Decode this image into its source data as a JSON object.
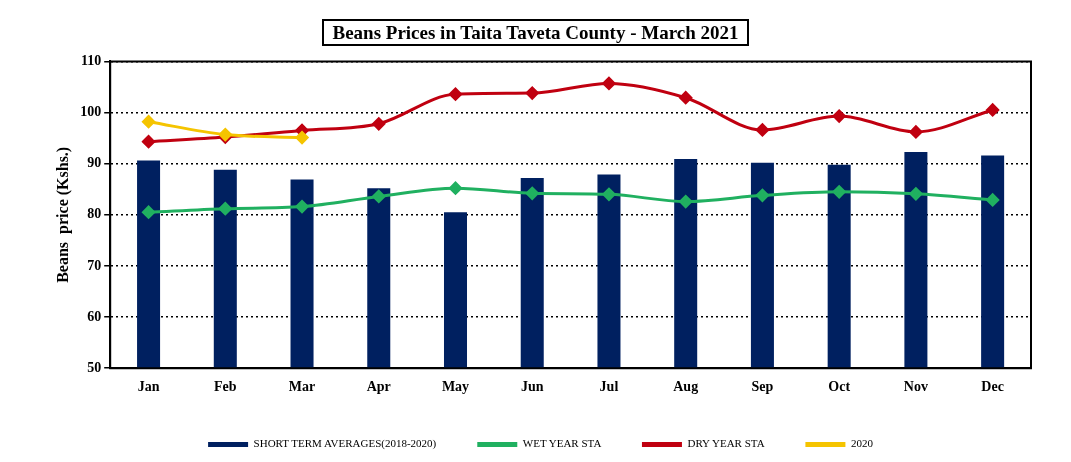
{
  "chart_data": {
    "type": "bar",
    "title": "Beans Prices in Taita Taveta County  - March 2021",
    "ylabel": "Beans  price (Kshs.)",
    "categories": [
      "Jan",
      "Feb",
      "Mar",
      "Apr",
      "May",
      "Jun",
      "Jul",
      "Aug",
      "Sep",
      "Oct",
      "Nov",
      "Dec"
    ],
    "series": [
      {
        "name": "SHORT TERM AVERAGES(2018-2020)",
        "color": "#002060",
        "values": [
          90.6,
          88.8,
          86.9,
          85.2,
          80.5,
          87.2,
          87.9,
          90.9,
          90.2,
          89.8,
          92.3,
          91.6
        ]
      },
      {
        "name": "WET YEAR STA",
        "type": "line",
        "color": "#20b060",
        "values": [
          80.5,
          81.2,
          81.6,
          83.6,
          85.2,
          84.2,
          84.0,
          82.6,
          83.8,
          84.5,
          84.1,
          82.9
        ]
      },
      {
        "name": "DRY YEAR STA",
        "type": "line",
        "color": "#c00010",
        "values": [
          94.3,
          95.2,
          96.5,
          97.8,
          103.6,
          103.8,
          105.7,
          102.9,
          96.6,
          99.3,
          96.2,
          100.5
        ]
      },
      {
        "name": "2020",
        "type": "line",
        "color": "#f5c400",
        "values": [
          98.2,
          95.7,
          95.1,
          null,
          null,
          null,
          null,
          null,
          null,
          null,
          null,
          null
        ]
      }
    ],
    "ylim": [
      50,
      110
    ],
    "yticks": [
      50,
      60,
      70,
      80,
      90,
      100,
      110
    ],
    "grid": "y",
    "legend": "bottom",
    "marker": "diamond",
    "line_style": "solid"
  }
}
